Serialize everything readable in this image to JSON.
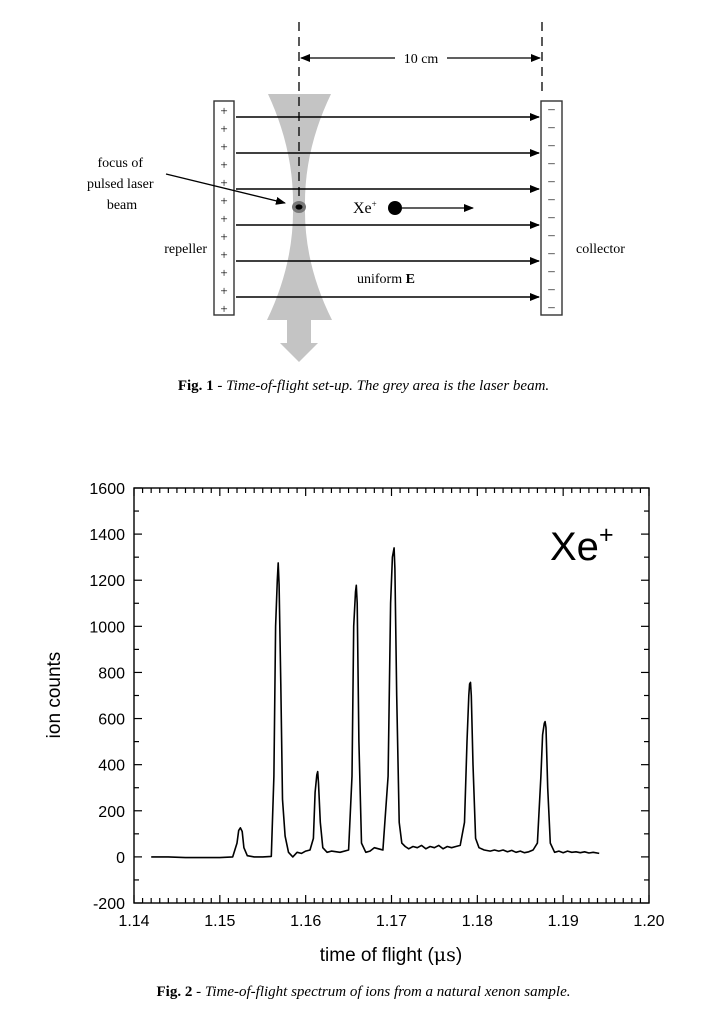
{
  "figure1": {
    "distance_label": "10 cm",
    "focus_label_lines": [
      "focus of",
      "pulsed laser",
      "beam"
    ],
    "repeller_label": "repeller",
    "collector_label": "collector",
    "ion_label": "Xe",
    "ion_charge": "+",
    "field_label": "uniform ",
    "field_symbol": "E",
    "repeller_sign": "+",
    "collector_sign": "–",
    "plate_sign_count": 12,
    "field_line_count": 6,
    "beam_color": "#c4c4c4",
    "caption_prefix": "Fig. 1",
    "caption_separator": " - ",
    "caption_text": "Time-of-flight set-up. The grey area is the laser beam."
  },
  "figure2": {
    "caption_prefix": "Fig. 2",
    "caption_separator": " - ",
    "caption_text": "Time-of-flight spectrum of ions from a natural xenon sample."
  },
  "chart_data": {
    "type": "line",
    "title": "",
    "annotation": "Xe+",
    "annotation_main": "Xe",
    "annotation_sup": "+",
    "xlabel": "time of flight (μs)",
    "xlabel_main": "time of flight (",
    "xlabel_unit": "μs",
    "xlabel_close": ")",
    "ylabel": "ion counts",
    "xlim": [
      1.14,
      1.2
    ],
    "ylim": [
      -200,
      1600
    ],
    "xticks": [
      1.14,
      1.15,
      1.16,
      1.17,
      1.18,
      1.19,
      1.2
    ],
    "xtick_labels": [
      "1.14",
      "1.15",
      "1.16",
      "1.17",
      "1.18",
      "1.19",
      "1.20"
    ],
    "yticks": [
      -200,
      0,
      200,
      400,
      600,
      800,
      1000,
      1200,
      1400,
      1600
    ],
    "ytick_labels": [
      "-200",
      "0",
      "200",
      "400",
      "600",
      "800",
      "1000",
      "1200",
      "1400",
      "1600"
    ],
    "x_minor_step": 0.001,
    "y_minor_step": 100,
    "grid": false,
    "legend": null,
    "data_range": [
      1.142,
      1.1942
    ],
    "peaks": [
      {
        "x": 1.1524,
        "y": 126
      },
      {
        "x": 1.1568,
        "y": 1275
      },
      {
        "x": 1.1614,
        "y": 370
      },
      {
        "x": 1.1659,
        "y": 1178
      },
      {
        "x": 1.1703,
        "y": 1340
      },
      {
        "x": 1.1792,
        "y": 757
      },
      {
        "x": 1.1879,
        "y": 587
      }
    ],
    "series": [
      {
        "name": "Xe+ time-of-flight spectrum",
        "x": [
          1.142,
          1.144,
          1.146,
          1.148,
          1.15,
          1.1515,
          1.152,
          1.1522,
          1.1524,
          1.1526,
          1.1528,
          1.1532,
          1.154,
          1.155,
          1.156,
          1.1563,
          1.1565,
          1.1567,
          1.1568,
          1.1569,
          1.1571,
          1.1573,
          1.1576,
          1.158,
          1.1585,
          1.159,
          1.1595,
          1.16,
          1.1605,
          1.1609,
          1.1611,
          1.1613,
          1.1614,
          1.1615,
          1.1617,
          1.162,
          1.1625,
          1.163,
          1.164,
          1.165,
          1.1654,
          1.1656,
          1.1658,
          1.1659,
          1.166,
          1.1662,
          1.1665,
          1.167,
          1.1675,
          1.168,
          1.169,
          1.1696,
          1.1699,
          1.1701,
          1.1703,
          1.1704,
          1.1706,
          1.1709,
          1.1712,
          1.1716,
          1.172,
          1.1725,
          1.173,
          1.1735,
          1.174,
          1.1745,
          1.175,
          1.1755,
          1.176,
          1.1765,
          1.177,
          1.1775,
          1.178,
          1.1785,
          1.1788,
          1.179,
          1.1791,
          1.1792,
          1.1793,
          1.1795,
          1.1798,
          1.1802,
          1.1808,
          1.1815,
          1.182,
          1.1825,
          1.183,
          1.1835,
          1.184,
          1.1845,
          1.185,
          1.1855,
          1.186,
          1.1865,
          1.187,
          1.1874,
          1.1876,
          1.1878,
          1.1879,
          1.188,
          1.1882,
          1.1885,
          1.189,
          1.1895,
          1.19,
          1.1905,
          1.191,
          1.1915,
          1.192,
          1.1925,
          1.193,
          1.1935,
          1.1942
        ],
        "y": [
          0,
          0,
          -3,
          -3,
          -3,
          0,
          60,
          115,
          126,
          110,
          40,
          5,
          0,
          0,
          2,
          350,
          1000,
          1200,
          1275,
          1180,
          750,
          250,
          90,
          20,
          0,
          20,
          15,
          25,
          30,
          80,
          280,
          355,
          370,
          320,
          150,
          40,
          20,
          25,
          20,
          30,
          350,
          1000,
          1150,
          1178,
          1100,
          500,
          60,
          20,
          25,
          40,
          30,
          350,
          1100,
          1300,
          1340,
          1250,
          700,
          150,
          60,
          45,
          35,
          45,
          40,
          50,
          35,
          45,
          40,
          50,
          35,
          45,
          40,
          45,
          50,
          150,
          500,
          700,
          750,
          757,
          700,
          400,
          80,
          40,
          30,
          25,
          30,
          25,
          30,
          22,
          28,
          20,
          25,
          18,
          22,
          30,
          60,
          350,
          530,
          580,
          587,
          560,
          300,
          60,
          20,
          25,
          18,
          25,
          20,
          22,
          18,
          22,
          17,
          20,
          15
        ]
      }
    ]
  }
}
